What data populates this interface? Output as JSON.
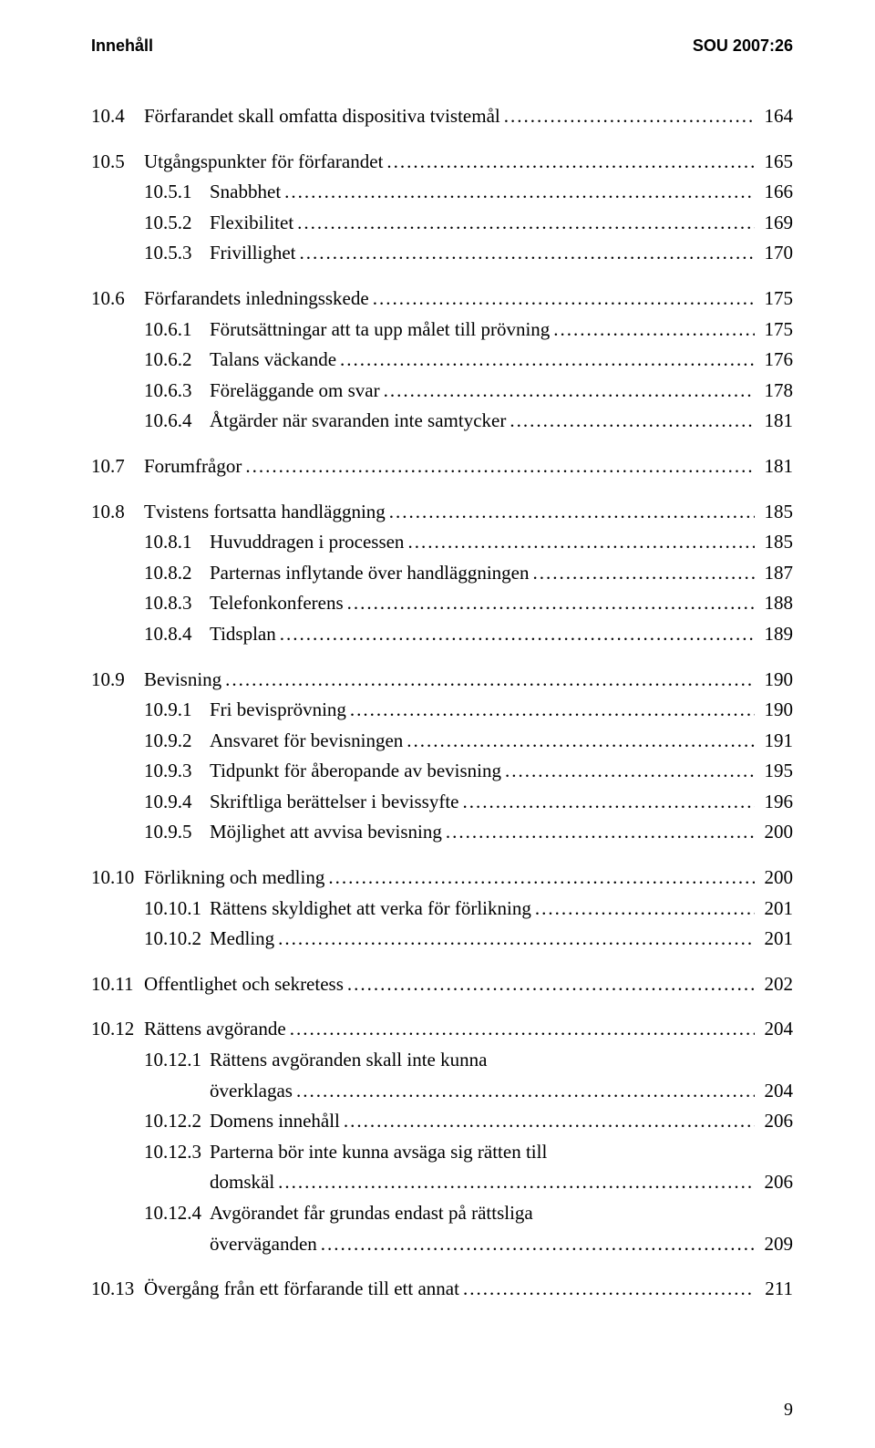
{
  "header": {
    "left": "Innehåll",
    "right": "SOU 2007:26"
  },
  "entries": [
    {
      "num": "10.4",
      "label": "Förfarandet skall omfatta dispositiva tvistemål",
      "page": "164",
      "indent": 0,
      "gapBefore": false
    },
    {
      "num": "10.5",
      "label": "Utgångspunkter för förfarandet",
      "page": "165",
      "indent": 0,
      "gapBefore": true
    },
    {
      "num": "10.5.1",
      "label": "Snabbhet",
      "page": "166",
      "indent": 1,
      "gapBefore": false
    },
    {
      "num": "10.5.2",
      "label": "Flexibilitet",
      "page": "169",
      "indent": 1,
      "gapBefore": false
    },
    {
      "num": "10.5.3",
      "label": "Frivillighet",
      "page": "170",
      "indent": 1,
      "gapBefore": false
    },
    {
      "num": "10.6",
      "label": "Förfarandets inledningsskede",
      "page": "175",
      "indent": 0,
      "gapBefore": true
    },
    {
      "num": "10.6.1",
      "label": "Förutsättningar att ta upp målet till prövning",
      "page": "175",
      "indent": 1,
      "gapBefore": false
    },
    {
      "num": "10.6.2",
      "label": "Talans väckande",
      "page": "176",
      "indent": 1,
      "gapBefore": false
    },
    {
      "num": "10.6.3",
      "label": "Föreläggande om svar",
      "page": "178",
      "indent": 1,
      "gapBefore": false
    },
    {
      "num": "10.6.4",
      "label": "Åtgärder när svaranden inte samtycker",
      "page": "181",
      "indent": 1,
      "gapBefore": false
    },
    {
      "num": "10.7",
      "label": "Forumfrågor",
      "page": "181",
      "indent": 0,
      "gapBefore": true
    },
    {
      "num": "10.8",
      "label": "Tvistens fortsatta handläggning",
      "page": "185",
      "indent": 0,
      "gapBefore": true
    },
    {
      "num": "10.8.1",
      "label": "Huvuddragen i processen",
      "page": "185",
      "indent": 1,
      "gapBefore": false
    },
    {
      "num": "10.8.2",
      "label": "Parternas inflytande över handläggningen",
      "page": "187",
      "indent": 1,
      "gapBefore": false
    },
    {
      "num": "10.8.3",
      "label": "Telefonkonferens",
      "page": "188",
      "indent": 1,
      "gapBefore": false
    },
    {
      "num": "10.8.4",
      "label": "Tidsplan",
      "page": "189",
      "indent": 1,
      "gapBefore": false
    },
    {
      "num": "10.9",
      "label": "Bevisning",
      "page": "190",
      "indent": 0,
      "gapBefore": true
    },
    {
      "num": "10.9.1",
      "label": "Fri bevisprövning",
      "page": "190",
      "indent": 1,
      "gapBefore": false
    },
    {
      "num": "10.9.2",
      "label": "Ansvaret för bevisningen",
      "page": "191",
      "indent": 1,
      "gapBefore": false
    },
    {
      "num": "10.9.3",
      "label": "Tidpunkt för åberopande av bevisning",
      "page": "195",
      "indent": 1,
      "gapBefore": false
    },
    {
      "num": "10.9.4",
      "label": "Skriftliga berättelser i bevissyfte",
      "page": "196",
      "indent": 1,
      "gapBefore": false
    },
    {
      "num": "10.9.5",
      "label": "Möjlighet att avvisa bevisning",
      "page": "200",
      "indent": 1,
      "gapBefore": false
    },
    {
      "num": "10.10",
      "label": "Förlikning och medling",
      "page": "200",
      "indent": 0,
      "gapBefore": true
    },
    {
      "num": "10.10.1",
      "label": "Rättens skyldighet att verka för förlikning",
      "page": "201",
      "indent": 1,
      "gapBefore": false
    },
    {
      "num": "10.10.2",
      "label": "Medling",
      "page": "201",
      "indent": 1,
      "gapBefore": false
    },
    {
      "num": "10.11",
      "label": "Offentlighet och sekretess",
      "page": "202",
      "indent": 0,
      "gapBefore": true
    },
    {
      "num": "10.12",
      "label": "Rättens avgörande",
      "page": "204",
      "indent": 0,
      "gapBefore": true
    },
    {
      "num": "10.12.1",
      "label": "Rättens avgöranden skall inte kunna",
      "page": "",
      "indent": 1,
      "gapBefore": false,
      "noLeader": true
    },
    {
      "num": "",
      "label": "överklagas",
      "page": "204",
      "indent": 2,
      "gapBefore": false
    },
    {
      "num": "10.12.2",
      "label": "Domens innehåll",
      "page": "206",
      "indent": 1,
      "gapBefore": false
    },
    {
      "num": "10.12.3",
      "label": "Parterna bör inte kunna avsäga sig rätten till",
      "page": "",
      "indent": 1,
      "gapBefore": false,
      "noLeader": true
    },
    {
      "num": "",
      "label": "domskäl",
      "page": "206",
      "indent": 2,
      "gapBefore": false
    },
    {
      "num": "10.12.4",
      "label": "Avgörandet får grundas endast på rättsliga",
      "page": "",
      "indent": 1,
      "gapBefore": false,
      "noLeader": true
    },
    {
      "num": "",
      "label": "överväganden",
      "page": "209",
      "indent": 2,
      "gapBefore": false
    },
    {
      "num": "10.13",
      "label": "Övergång från ett förfarande till ett annat",
      "page": "211",
      "indent": 0,
      "gapBefore": true
    }
  ],
  "pageNumber": "9"
}
